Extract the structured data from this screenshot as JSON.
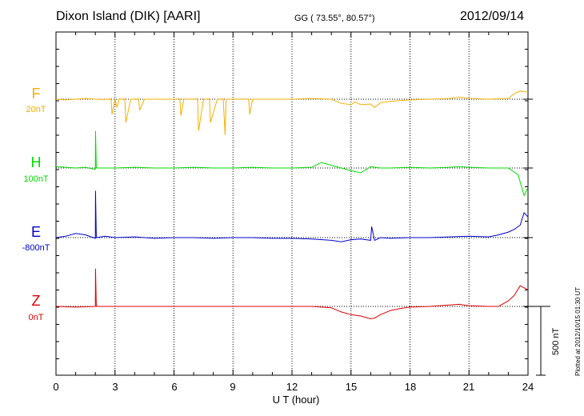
{
  "header": {
    "station": "Dixon Island (DIK)  [AARI]",
    "coords": "GG ( 73.55°,  80.57°)",
    "date": "2012/09/14"
  },
  "footer": {
    "plotted": "Plotted at 2012/10/15 01:30 UT"
  },
  "colors": {
    "F": "#f5b000",
    "H": "#00dd00",
    "E": "#0000cc",
    "Z": "#dd0000",
    "grid": "#000000"
  },
  "chart_data": {
    "type": "line",
    "title": "Dixon Island (DIK)  [AARI]",
    "xlabel": "U T (hour)",
    "xlim": [
      0,
      24
    ],
    "xticks": [
      "0",
      "3",
      "6",
      "9",
      "12",
      "15",
      "18",
      "21",
      "24"
    ],
    "grid": true,
    "scale_bar": {
      "label": "500 nT",
      "value_nT": 500
    },
    "series": [
      {
        "name": "F",
        "baseline_label": "20nT",
        "x": [
          0,
          0.5,
          1,
          1.5,
          2,
          2.5,
          2.8,
          2.85,
          3,
          3.1,
          3.2,
          3.5,
          3.55,
          3.8,
          4.2,
          4.25,
          4.5,
          6,
          6.3,
          6.35,
          6.5,
          7.2,
          7.25,
          7.5,
          7.8,
          7.85,
          8.2,
          8.5,
          8.6,
          8.65,
          8.8,
          9.8,
          9.85,
          10,
          11,
          12,
          13,
          14,
          14.5,
          15,
          15.2,
          15.5,
          16,
          16.2,
          16.5,
          17,
          18,
          19,
          20,
          20.5,
          21,
          22,
          23,
          23.3,
          23.6,
          24
        ],
        "values": [
          0,
          -5,
          0,
          5,
          0,
          -2,
          3,
          -110,
          2,
          -60,
          0,
          2,
          -170,
          0,
          2,
          -80,
          0,
          0,
          3,
          -120,
          0,
          2,
          -230,
          0,
          2,
          -170,
          0,
          2,
          -260,
          0,
          0,
          2,
          -110,
          0,
          0,
          0,
          5,
          0,
          -30,
          -40,
          -20,
          -40,
          -35,
          -60,
          -25,
          -15,
          -5,
          0,
          5,
          15,
          5,
          0,
          5,
          40,
          60,
          50
        ]
      },
      {
        "name": "H",
        "baseline_label": "100nT",
        "x": [
          0,
          1,
          1.5,
          2,
          2.01,
          2.05,
          3,
          4,
          5,
          6,
          7,
          8,
          9,
          10,
          11,
          12,
          13,
          13.5,
          14,
          15,
          15.5,
          16,
          16.5,
          17,
          18,
          19,
          20,
          20.5,
          21,
          22,
          23,
          23.5,
          23.8,
          24
        ],
        "values": [
          10,
          0,
          5,
          -10,
          270,
          0,
          0,
          5,
          0,
          0,
          5,
          0,
          0,
          5,
          0,
          0,
          5,
          40,
          20,
          -20,
          -35,
          10,
          0,
          0,
          5,
          0,
          5,
          10,
          5,
          0,
          0,
          -50,
          -200,
          -140
        ]
      },
      {
        "name": "E",
        "baseline_label": "-800nT",
        "x": [
          0,
          0.5,
          1,
          1.5,
          2,
          2.01,
          2.05,
          2.5,
          3,
          4,
          5,
          6,
          7,
          8,
          9,
          10,
          11,
          12,
          13,
          14,
          14.5,
          15,
          15.5,
          16,
          16.05,
          16.2,
          16.5,
          17,
          18,
          19,
          20,
          21,
          22,
          22.5,
          23,
          23.3,
          23.6,
          23.8,
          24
        ],
        "values": [
          0,
          10,
          30,
          20,
          -5,
          340,
          0,
          10,
          0,
          5,
          -5,
          0,
          0,
          -5,
          0,
          0,
          -5,
          -5,
          -10,
          -20,
          -30,
          -15,
          -10,
          -20,
          80,
          -20,
          0,
          -5,
          0,
          0,
          5,
          10,
          5,
          20,
          40,
          60,
          90,
          180,
          150
        ]
      },
      {
        "name": "Z",
        "baseline_label": "0nT",
        "x": [
          0,
          1,
          2,
          2.01,
          2.05,
          3,
          4,
          6,
          8,
          10,
          12,
          13,
          14,
          14.5,
          15,
          15.5,
          16,
          16.2,
          16.5,
          17,
          17.5,
          18,
          19,
          20,
          20.5,
          21,
          22,
          22.5,
          23,
          23.3,
          23.6,
          24
        ],
        "values": [
          0,
          -5,
          0,
          275,
          0,
          0,
          0,
          0,
          0,
          0,
          0,
          0,
          -10,
          -40,
          -60,
          -70,
          -90,
          -85,
          -60,
          -30,
          -15,
          -5,
          0,
          10,
          15,
          5,
          0,
          0,
          40,
          80,
          150,
          120
        ]
      }
    ]
  }
}
